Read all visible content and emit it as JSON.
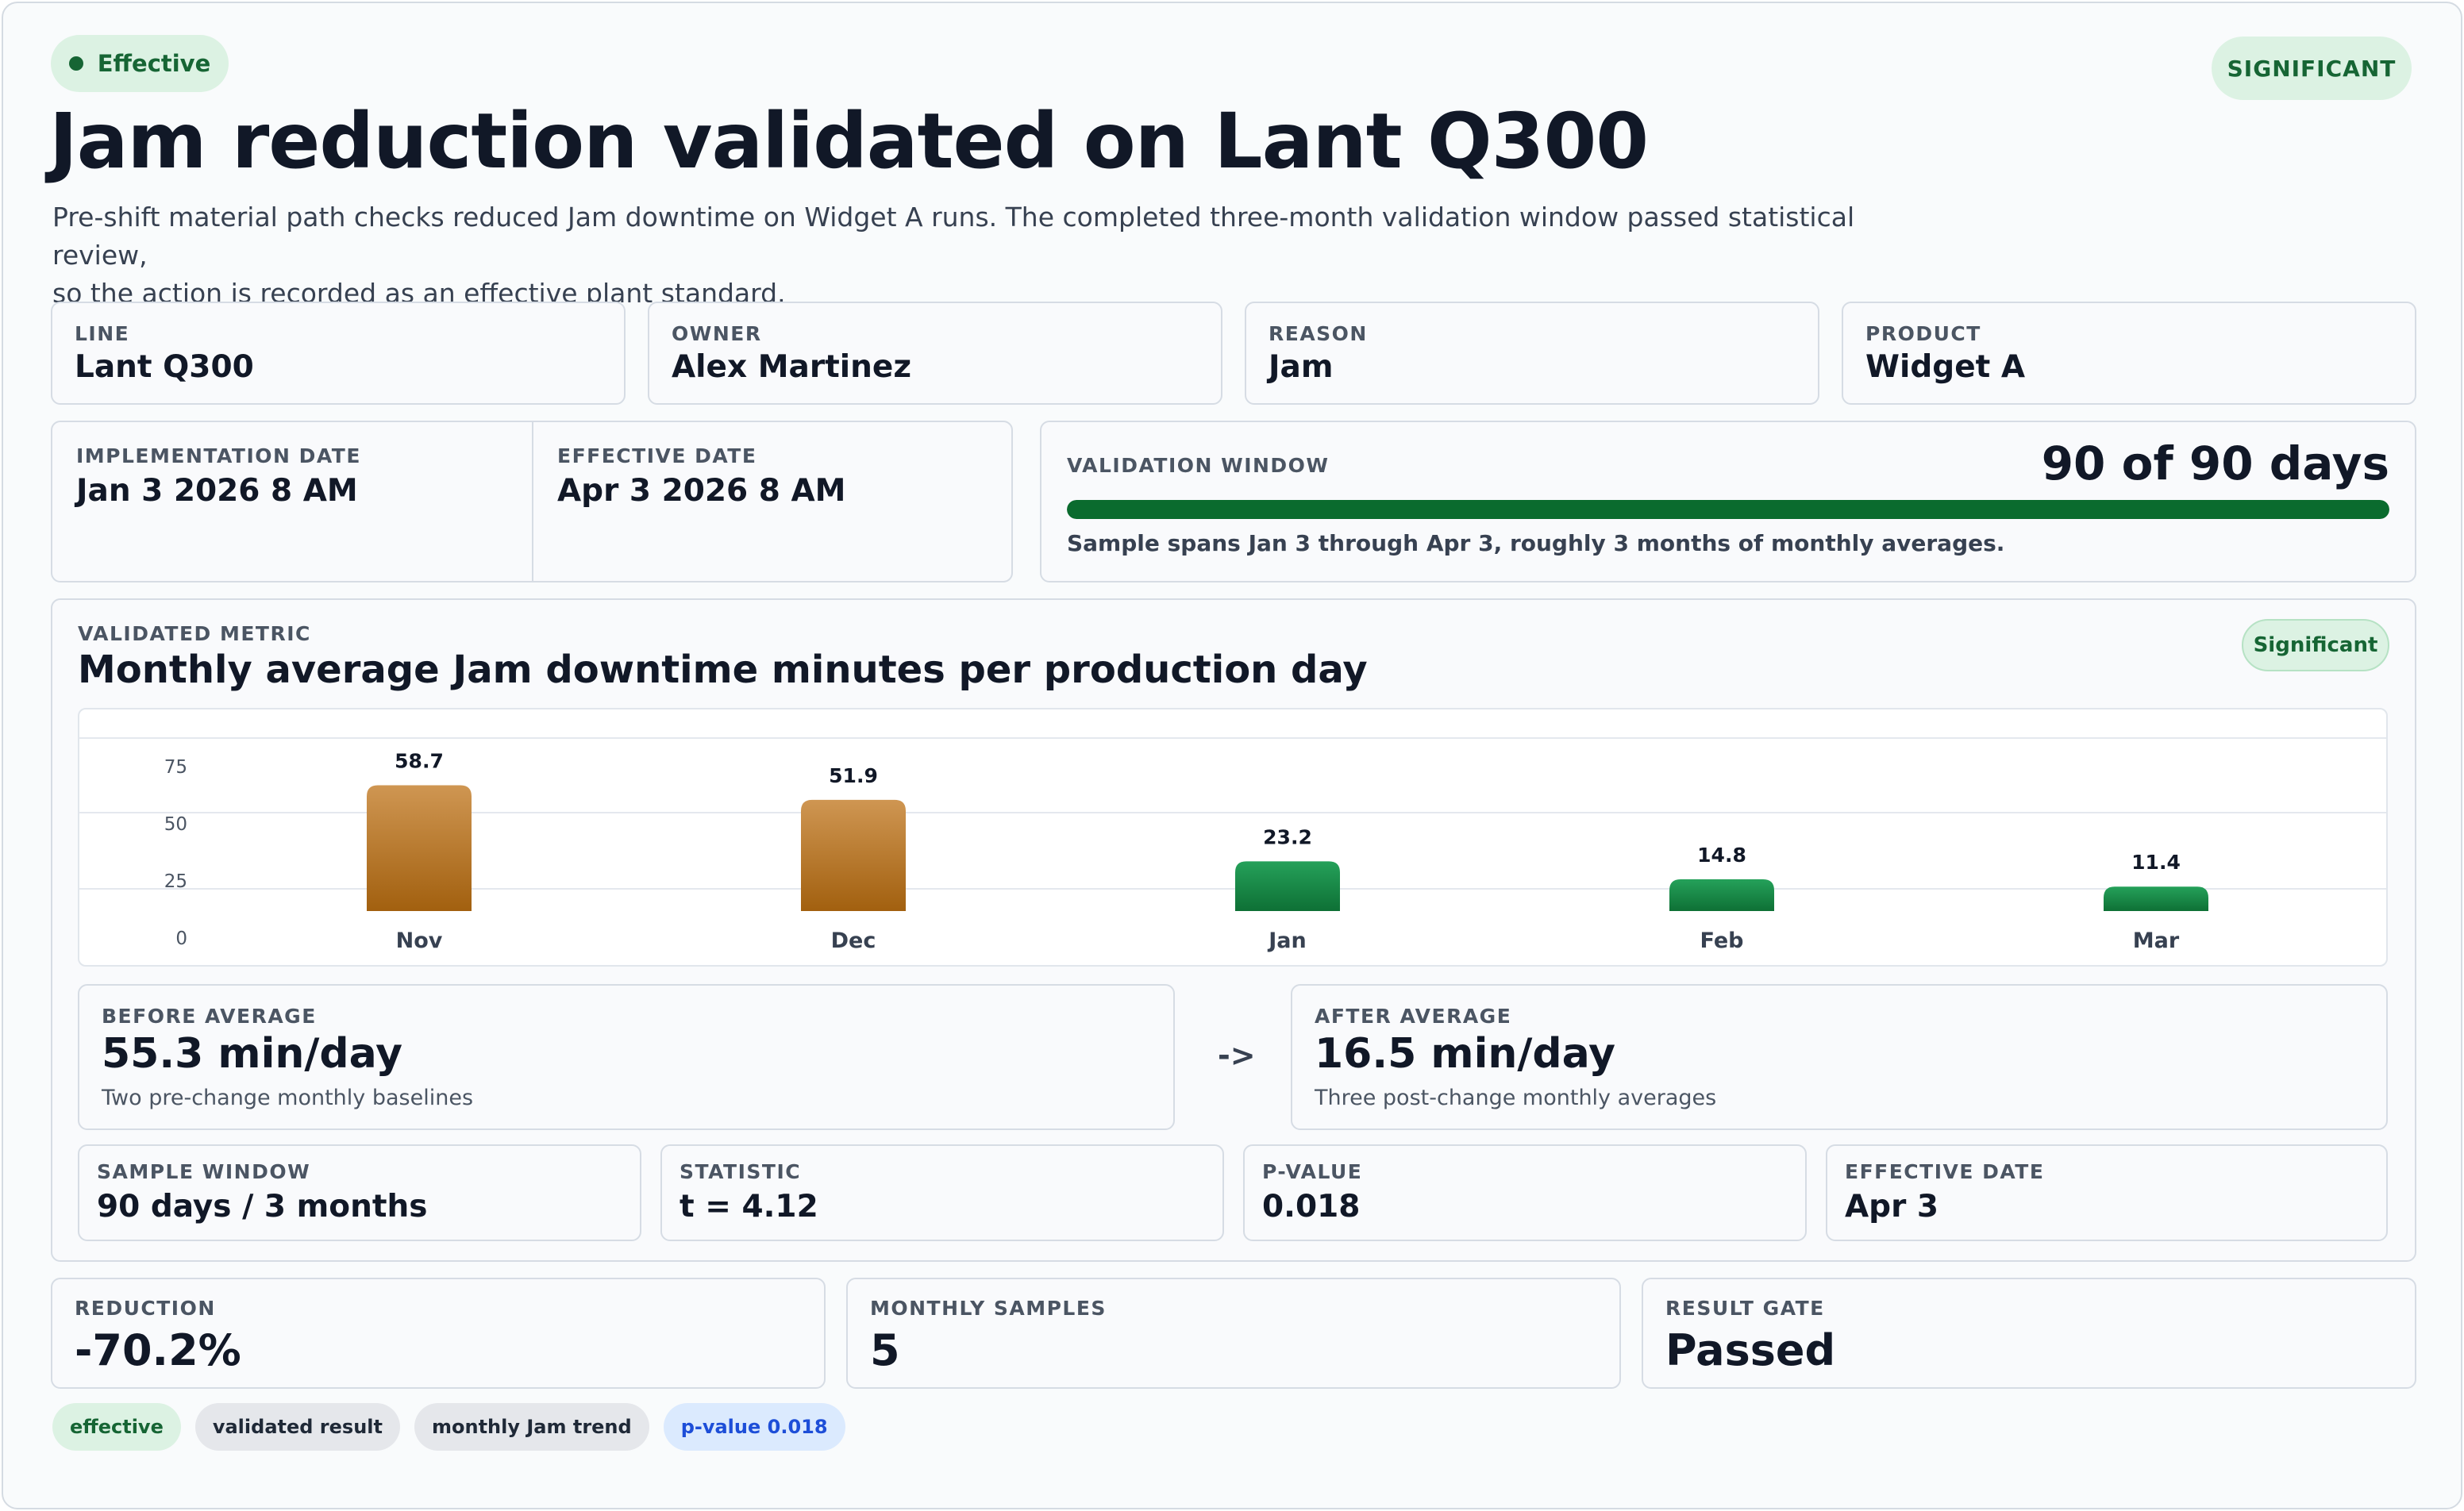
{
  "status": {
    "label": "Effective",
    "badge": "SIGNIFICANT"
  },
  "header": {
    "title": "Jam reduction validated on Lant Q300",
    "subtitle_line1": "Pre-shift material path checks reduced Jam downtime on Widget A runs. The completed three-month validation window passed statistical review,",
    "subtitle_line2": "so the action is recorded as an effective plant standard."
  },
  "info": [
    {
      "label": "LINE",
      "value": "Lant Q300"
    },
    {
      "label": "OWNER",
      "value": "Alex Martinez"
    },
    {
      "label": "REASON",
      "value": "Jam"
    },
    {
      "label": "PRODUCT",
      "value": "Widget A"
    }
  ],
  "dates": {
    "implementation_label": "IMPLEMENTATION DATE",
    "implementation_value": "Jan 3 2026 8 AM",
    "effective_label": "EFFECTIVE DATE",
    "effective_value": "Apr 3 2026 8 AM"
  },
  "validation_window": {
    "label": "VALIDATION WINDOW",
    "days_text": "90 of 90 days",
    "progress": 1.0,
    "note": "Sample spans Jan 3 through Apr 3, roughly 3 months of monthly averages."
  },
  "metric": {
    "label": "VALIDATED METRIC",
    "title": "Monthly average Jam downtime minutes per production day",
    "badge": "Significant"
  },
  "chart_data": {
    "type": "bar",
    "categories": [
      "Nov",
      "Dec",
      "Jan",
      "Feb",
      "Mar"
    ],
    "values": [
      58.7,
      51.9,
      23.2,
      14.8,
      11.4
    ],
    "phase": [
      "before",
      "before",
      "after",
      "after",
      "after"
    ],
    "yticks": [
      "0",
      "25",
      "50",
      "75"
    ],
    "ylim": [
      0,
      100
    ],
    "colors": {
      "before_top": "#cf9652",
      "before_bottom": "#a2600f",
      "after_top": "#25a15a",
      "after_bottom": "#0e7035"
    }
  },
  "averages": {
    "before_label": "BEFORE AVERAGE",
    "before_value": "55.3 min/day",
    "before_note": "Two pre-change monthly baselines",
    "arrow": "->",
    "after_label": "AFTER AVERAGE",
    "after_value": "16.5 min/day",
    "after_note": "Three post-change monthly averages"
  },
  "stats": [
    {
      "label": "SAMPLE WINDOW",
      "value": "90 days / 3 months"
    },
    {
      "label": "STATISTIC",
      "value": "t = 4.12"
    },
    {
      "label": "P-VALUE",
      "value": "0.018"
    },
    {
      "label": "EFFECTIVE DATE",
      "value": "Apr 3"
    }
  ],
  "results": [
    {
      "label": "REDUCTION",
      "value": "-70.2%"
    },
    {
      "label": "MONTHLY SAMPLES",
      "value": "5"
    },
    {
      "label": "RESULT GATE",
      "value": "Passed"
    }
  ],
  "tags": [
    "effective",
    "validated result",
    "monthly Jam trend",
    "p-value 0.018"
  ]
}
